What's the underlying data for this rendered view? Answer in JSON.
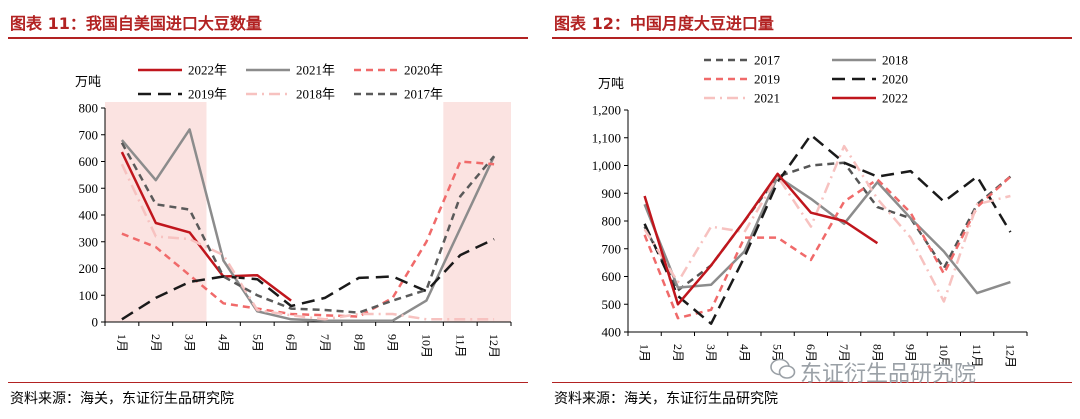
{
  "left": {
    "title": "图表 11：我国自美国进口大豆数量",
    "source": "资料来源：海关，东证衍生品研究院"
  },
  "right": {
    "title": "图表 12：中国月度大豆进口量",
    "source": "资料来源：海关，东证衍生品研究院"
  },
  "watermark": "东证衍生品研究院",
  "chart_data": [
    {
      "type": "line",
      "unit_label": "万吨",
      "categories": [
        "1月",
        "2月",
        "3月",
        "4月",
        "5月",
        "6月",
        "7月",
        "8月",
        "9月",
        "10月",
        "11月",
        "12月"
      ],
      "ylim": [
        0,
        800
      ],
      "yticks": [
        0,
        100,
        200,
        300,
        400,
        500,
        600,
        700,
        800
      ],
      "highlight_ranges": [
        [
          0,
          2
        ],
        [
          10,
          11
        ]
      ],
      "legend_position": "top",
      "series": [
        {
          "name": "2022年",
          "color": "#c0161d",
          "dash": "solid",
          "width": 2.5,
          "values": [
            635,
            370,
            335,
            170,
            175,
            80,
            null,
            null,
            null,
            null,
            null,
            null
          ]
        },
        {
          "name": "2021年",
          "color": "#8c8c8c",
          "dash": "solid",
          "width": 2.5,
          "values": [
            680,
            530,
            720,
            230,
            40,
            10,
            5,
            5,
            5,
            80,
            350,
            620
          ]
        },
        {
          "name": "2020年",
          "color": "#f06a6a",
          "dash": "dash",
          "width": 2.5,
          "values": [
            330,
            280,
            175,
            70,
            50,
            30,
            25,
            20,
            90,
            300,
            600,
            590
          ]
        },
        {
          "name": "2019年",
          "color": "#1a1a1a",
          "dash": "longdash",
          "width": 2.5,
          "values": [
            10,
            90,
            150,
            170,
            160,
            60,
            90,
            165,
            170,
            115,
            250,
            310
          ]
        },
        {
          "name": "2018年",
          "color": "#f7c2c0",
          "dash": "dashdot",
          "width": 2.5,
          "values": [
            590,
            320,
            310,
            250,
            45,
            25,
            10,
            30,
            30,
            10,
            10,
            10
          ]
        },
        {
          "name": "2017年",
          "color": "#5a5a5a",
          "dash": "dash",
          "width": 2.5,
          "values": [
            670,
            440,
            420,
            170,
            100,
            50,
            45,
            35,
            80,
            120,
            470,
            620
          ]
        }
      ]
    },
    {
      "type": "line",
      "unit_label": "万吨",
      "categories": [
        "1月",
        "2月",
        "3月",
        "4月",
        "5月",
        "6月",
        "7月",
        "8月",
        "9月",
        "10月",
        "11月",
        "12月"
      ],
      "ylim": [
        400,
        1200
      ],
      "yticks": [
        400,
        500,
        600,
        700,
        800,
        900,
        1000,
        1100,
        1200
      ],
      "ytick_labels": [
        "400",
        "500",
        "600",
        "700",
        "800",
        "900",
        "1,000",
        "1,100",
        "1,200"
      ],
      "legend_position": "top",
      "series": [
        {
          "name": "2017",
          "color": "#555555",
          "dash": "dash",
          "width": 2.5,
          "values": [
            780,
            550,
            640,
            800,
            960,
            1000,
            1010,
            850,
            810,
            630,
            860,
            960
          ]
        },
        {
          "name": "2018",
          "color": "#8c8c8c",
          "dash": "solid",
          "width": 2.5,
          "values": [
            860,
            560,
            570,
            690,
            960,
            880,
            790,
            940,
            810,
            690,
            540,
            580
          ]
        },
        {
          "name": "2019",
          "color": "#f06a6a",
          "dash": "dash",
          "width": 2.5,
          "values": [
            750,
            450,
            480,
            740,
            740,
            660,
            870,
            950,
            830,
            610,
            850,
            960
          ]
        },
        {
          "name": "2020",
          "color": "#1a1a1a",
          "dash": "longdash",
          "width": 2.5,
          "values": [
            790,
            530,
            430,
            670,
            940,
            1110,
            1010,
            960,
            980,
            870,
            960,
            760
          ]
        },
        {
          "name": "2021",
          "color": "#f7c2c0",
          "dash": "dashdot",
          "width": 2.5,
          "values": [
            770,
            580,
            780,
            760,
            960,
            780,
            1070,
            880,
            740,
            510,
            860,
            890
          ]
        },
        {
          "name": "2022",
          "color": "#c0161d",
          "dash": "solid",
          "width": 2.5,
          "values": [
            890,
            500,
            640,
            800,
            970,
            830,
            800,
            720,
            null,
            null,
            null,
            null
          ]
        }
      ]
    }
  ]
}
